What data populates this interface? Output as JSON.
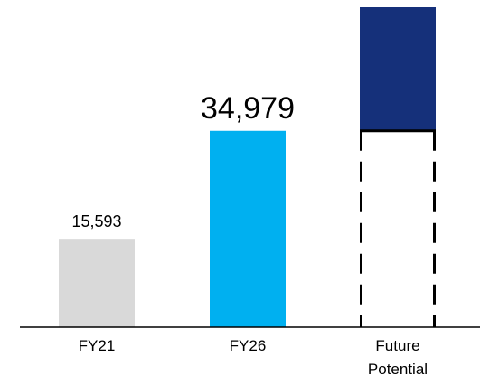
{
  "chart_data": {
    "type": "bar",
    "categories": [
      "FY21",
      "FY26",
      "Future Potential"
    ],
    "values": [
      15593,
      34979,
      57000
    ],
    "value_labels": [
      "15,593",
      "34,979",
      null
    ],
    "colors": [
      "#d9d9d9",
      "#00b0f0",
      "#15307a"
    ]
  }
}
